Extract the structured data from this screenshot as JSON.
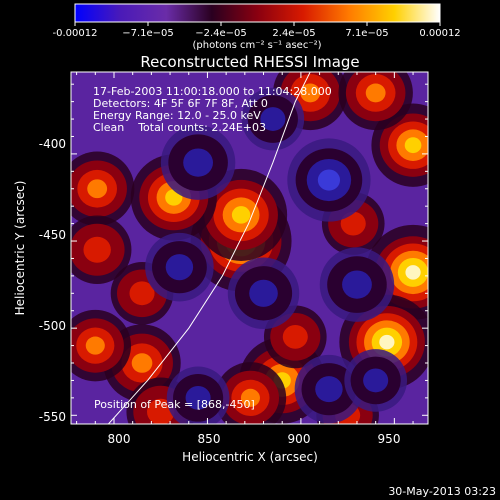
{
  "colorbar": {
    "ticks": [
      "-0.00012",
      "−7.1e−05",
      "−2.4e−05",
      "2.4e−05",
      "7.1e−05",
      "0.00012"
    ],
    "unit_label": "(photons cm⁻² s⁻¹ asec⁻²)",
    "range": [
      -0.00012,
      0.00012
    ],
    "stops": [
      "#0000ff",
      "#4a1ab8",
      "#6a2ca8",
      "#2a0020",
      "#8a0010",
      "#d81a00",
      "#ff7a00",
      "#ffd000",
      "#ffffff"
    ]
  },
  "chart_data": {
    "type": "heatmap",
    "title": "Reconstructed RHESSI Image",
    "xlabel": "Heliocentric X (arcsec)",
    "ylabel": "Heliocentric Y (arcsec)",
    "xlim": [
      777,
      968
    ],
    "ylim": [
      -555,
      -353
    ],
    "xticks": [
      800,
      850,
      900,
      950
    ],
    "yticks": [
      -400,
      -450,
      -500,
      -550
    ],
    "annotations": [
      "17-Feb-2003 11:00:18.000 to 11:04:28.000",
      "Detectors: 4F 5F 6F 7F 8F, Att 0",
      "Energy Range: 12.0 - 25.0 keV",
      "Clean    Total counts: 2.24E+03"
    ],
    "peak_label": "Position of Peak = [868,-450]",
    "peak": [
      868,
      -450
    ],
    "limb_curve": [
      [
        797,
        -555
      ],
      [
        818,
        -530
      ],
      [
        840,
        -500
      ],
      [
        858,
        -470
      ],
      [
        872,
        -440
      ],
      [
        885,
        -405
      ],
      [
        897,
        -370
      ],
      [
        905,
        -353
      ]
    ],
    "sources": [
      {
        "x": 868,
        "y": -450,
        "level": 1.0
      },
      {
        "x": 868,
        "y": -435,
        "level": 0.85
      },
      {
        "x": 832,
        "y": -425,
        "level": 0.75
      },
      {
        "x": 791,
        "y": -420,
        "level": 0.55
      },
      {
        "x": 791,
        "y": -455,
        "level": 0.45
      },
      {
        "x": 890,
        "y": -530,
        "level": 0.75
      },
      {
        "x": 960,
        "y": -468,
        "level": 0.9
      },
      {
        "x": 946,
        "y": -508,
        "level": 0.9
      },
      {
        "x": 960,
        "y": -395,
        "level": 0.7
      },
      {
        "x": 905,
        "y": -365,
        "level": 0.55
      },
      {
        "x": 940,
        "y": -365,
        "level": 0.55
      },
      {
        "x": 815,
        "y": -520,
        "level": 0.6
      },
      {
        "x": 790,
        "y": -510,
        "level": 0.5
      },
      {
        "x": 815,
        "y": -480,
        "level": 0.35
      },
      {
        "x": 873,
        "y": -540,
        "level": 0.5
      },
      {
        "x": 928,
        "y": -440,
        "level": 0.35
      },
      {
        "x": 825,
        "y": -548,
        "level": 0.45
      },
      {
        "x": 925,
        "y": -550,
        "level": 0.35
      },
      {
        "x": 897,
        "y": -505,
        "level": 0.35
      },
      {
        "x": 915,
        "y": -415,
        "level": -0.7
      },
      {
        "x": 930,
        "y": -475,
        "level": -0.55
      },
      {
        "x": 845,
        "y": -405,
        "level": -0.55
      },
      {
        "x": 880,
        "y": -480,
        "level": -0.5
      },
      {
        "x": 835,
        "y": -465,
        "level": -0.45
      },
      {
        "x": 915,
        "y": -535,
        "level": -0.45
      },
      {
        "x": 845,
        "y": -540,
        "level": -0.35
      },
      {
        "x": 940,
        "y": -530,
        "level": -0.35
      },
      {
        "x": 885,
        "y": -380,
        "level": -0.35
      }
    ]
  },
  "footer": {
    "timestamp": "30-May-2013 03:23"
  }
}
